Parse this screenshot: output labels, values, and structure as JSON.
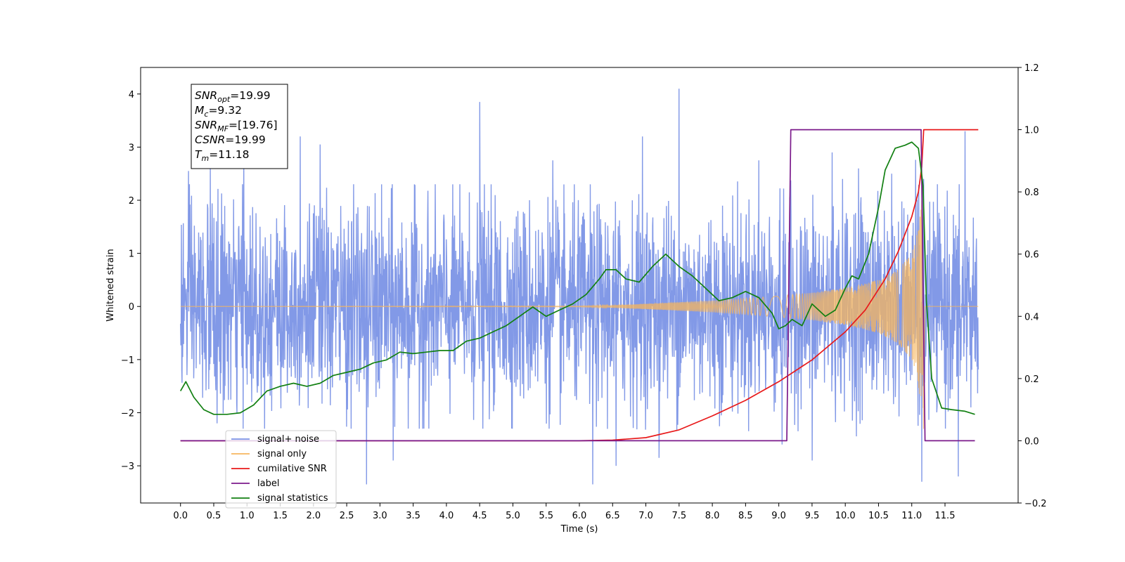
{
  "chart_data": {
    "type": "line",
    "title": "",
    "xlabel": "Time (s)",
    "ylabel": "Whitened strain",
    "y2label": "",
    "xlim": [
      -0.6,
      12.6
    ],
    "ylim": [
      -3.7,
      4.5
    ],
    "y2lim": [
      -0.2,
      1.2
    ],
    "xticks": [
      0.0,
      0.5,
      1.0,
      1.5,
      2.0,
      2.5,
      3.0,
      3.5,
      4.0,
      4.5,
      5.0,
      5.5,
      6.0,
      6.5,
      7.0,
      7.5,
      8.0,
      8.5,
      9.0,
      9.5,
      10.0,
      10.5,
      11.0,
      11.5
    ],
    "xtick_labels": [
      "0.0",
      "0.5",
      "1.0",
      "1.5",
      "2.0",
      "2.5",
      "3.0",
      "3.5",
      "4.0",
      "4.5",
      "5.0",
      "5.5",
      "6.0",
      "6.5",
      "7.0",
      "7.5",
      "8.0",
      "8.5",
      "9.0",
      "9.5",
      "10.0",
      "10.5",
      "11.0",
      "11.5"
    ],
    "yticks": [
      -3,
      -2,
      -1,
      0,
      1,
      2,
      3,
      4
    ],
    "ytick_labels": [
      "−3",
      "−2",
      "−1",
      "0",
      "1",
      "2",
      "3",
      "4"
    ],
    "y2ticks": [
      -0.2,
      0.0,
      0.2,
      0.4,
      0.6,
      0.8,
      1.0,
      1.2
    ],
    "y2tick_labels": [
      "−0.2",
      "0.0",
      "0.2",
      "0.4",
      "0.6",
      "0.8",
      "1.0",
      "1.2"
    ],
    "grid": false,
    "legend_position": "lower-left",
    "annotation": {
      "lines": [
        {
          "base": "SNR",
          "sub": "opt",
          "rest": "=19.99"
        },
        {
          "base": "M",
          "sub": "c",
          "rest": "=9.32"
        },
        {
          "base": "SNR",
          "sub": "MF",
          "rest": "=[19.76]"
        },
        {
          "base": "CSNR",
          "sub": "",
          "rest": "=19.99"
        },
        {
          "base": "T",
          "sub": "m",
          "rest": "=11.18"
        }
      ]
    },
    "noise_series": {
      "name": "signal+ noise",
      "color": "#7b93e6",
      "axis": "left",
      "t_start": 0.0,
      "t_end": 12.0,
      "typical_range": [
        -1.9,
        1.9
      ],
      "peaks": [
        {
          "t": 0.12,
          "v": 2.55
        },
        {
          "t": 0.45,
          "v": 2.6
        },
        {
          "t": 0.55,
          "v": -2.2
        },
        {
          "t": 0.95,
          "v": 2.85
        },
        {
          "t": 1.8,
          "v": 3.2
        },
        {
          "t": 2.1,
          "v": 3.05
        },
        {
          "t": 2.8,
          "v": -3.35
        },
        {
          "t": 3.2,
          "v": -2.9
        },
        {
          "t": 4.5,
          "v": 3.85
        },
        {
          "t": 5.6,
          "v": 2.75
        },
        {
          "t": 6.2,
          "v": -3.35
        },
        {
          "t": 6.55,
          "v": -3.0
        },
        {
          "t": 6.95,
          "v": 3.2
        },
        {
          "t": 7.2,
          "v": 3.05
        },
        {
          "t": 7.5,
          "v": 4.1
        },
        {
          "t": 7.2,
          "v": -2.85
        },
        {
          "t": 8.7,
          "v": 2.75
        },
        {
          "t": 9.05,
          "v": -2.6
        },
        {
          "t": 9.5,
          "v": -2.9
        },
        {
          "t": 9.8,
          "v": 2.9
        },
        {
          "t": 10.2,
          "v": 2.6
        },
        {
          "t": 10.7,
          "v": 2.5
        },
        {
          "t": 11.15,
          "v": 3.45
        },
        {
          "t": 11.15,
          "v": -3.3
        },
        {
          "t": 11.7,
          "v": -3.2
        },
        {
          "t": 11.8,
          "v": 3.3
        }
      ]
    },
    "signal_series": {
      "name": "signal only",
      "color": "#f6b65e",
      "axis": "left",
      "t_start": 0.0,
      "t_end": 12.0,
      "merger_time": 11.18,
      "envelope": [
        [
          0.0,
          0.0
        ],
        [
          6.0,
          0.005
        ],
        [
          6.5,
          0.02
        ],
        [
          7.0,
          0.05
        ],
        [
          7.5,
          0.08
        ],
        [
          8.0,
          0.11
        ],
        [
          8.5,
          0.15
        ],
        [
          9.0,
          0.2
        ],
        [
          9.5,
          0.26
        ],
        [
          10.0,
          0.35
        ],
        [
          10.5,
          0.5
        ],
        [
          10.8,
          0.7
        ],
        [
          11.0,
          1.0
        ],
        [
          11.1,
          1.5
        ],
        [
          11.18,
          2.5
        ],
        [
          11.2,
          0.0
        ],
        [
          12.0,
          0.0
        ]
      ]
    },
    "series": [
      {
        "name": "cumilative SNR",
        "color": "#e8191a",
        "axis": "right",
        "points": [
          [
            0.0,
            0.0
          ],
          [
            6.0,
            0.0
          ],
          [
            6.5,
            0.002
          ],
          [
            7.0,
            0.01
          ],
          [
            7.5,
            0.035
          ],
          [
            8.0,
            0.08
          ],
          [
            8.5,
            0.13
          ],
          [
            9.0,
            0.19
          ],
          [
            9.5,
            0.26
          ],
          [
            10.0,
            0.35
          ],
          [
            10.3,
            0.42
          ],
          [
            10.6,
            0.52
          ],
          [
            10.8,
            0.61
          ],
          [
            11.0,
            0.72
          ],
          [
            11.1,
            0.8
          ],
          [
            11.15,
            0.88
          ],
          [
            11.18,
            1.0
          ],
          [
            12.0,
            1.0
          ]
        ]
      },
      {
        "name": "label",
        "color": "#7b1a8b",
        "axis": "right",
        "points": [
          [
            0.0,
            0.0
          ],
          [
            9.12,
            0.0
          ],
          [
            9.18,
            1.0
          ],
          [
            11.14,
            1.0
          ],
          [
            11.2,
            0.0
          ],
          [
            11.95,
            0.0
          ]
        ]
      },
      {
        "name": "signal statistics",
        "color": "#128012",
        "axis": "right",
        "points": [
          [
            0.0,
            0.16
          ],
          [
            0.08,
            0.19
          ],
          [
            0.2,
            0.14
          ],
          [
            0.35,
            0.1
          ],
          [
            0.5,
            0.085
          ],
          [
            0.7,
            0.085
          ],
          [
            0.9,
            0.09
          ],
          [
            1.1,
            0.115
          ],
          [
            1.3,
            0.16
          ],
          [
            1.5,
            0.175
          ],
          [
            1.7,
            0.185
          ],
          [
            1.9,
            0.175
          ],
          [
            2.1,
            0.185
          ],
          [
            2.3,
            0.21
          ],
          [
            2.5,
            0.22
          ],
          [
            2.7,
            0.23
          ],
          [
            2.9,
            0.25
          ],
          [
            3.1,
            0.26
          ],
          [
            3.3,
            0.285
          ],
          [
            3.5,
            0.28
          ],
          [
            3.7,
            0.285
          ],
          [
            3.9,
            0.29
          ],
          [
            4.1,
            0.29
          ],
          [
            4.3,
            0.32
          ],
          [
            4.5,
            0.33
          ],
          [
            4.7,
            0.35
          ],
          [
            4.9,
            0.37
          ],
          [
            5.1,
            0.4
          ],
          [
            5.3,
            0.43
          ],
          [
            5.5,
            0.4
          ],
          [
            5.7,
            0.42
          ],
          [
            5.9,
            0.44
          ],
          [
            6.1,
            0.47
          ],
          [
            6.3,
            0.52
          ],
          [
            6.4,
            0.55
          ],
          [
            6.55,
            0.55
          ],
          [
            6.7,
            0.52
          ],
          [
            6.9,
            0.51
          ],
          [
            7.1,
            0.56
          ],
          [
            7.3,
            0.6
          ],
          [
            7.5,
            0.56
          ],
          [
            7.7,
            0.53
          ],
          [
            7.9,
            0.49
          ],
          [
            8.1,
            0.45
          ],
          [
            8.3,
            0.46
          ],
          [
            8.5,
            0.48
          ],
          [
            8.7,
            0.46
          ],
          [
            8.9,
            0.41
          ],
          [
            9.0,
            0.36
          ],
          [
            9.1,
            0.37
          ],
          [
            9.2,
            0.39
          ],
          [
            9.35,
            0.37
          ],
          [
            9.5,
            0.44
          ],
          [
            9.7,
            0.4
          ],
          [
            9.85,
            0.42
          ],
          [
            10.0,
            0.49
          ],
          [
            10.1,
            0.53
          ],
          [
            10.2,
            0.52
          ],
          [
            10.35,
            0.6
          ],
          [
            10.5,
            0.75
          ],
          [
            10.6,
            0.87
          ],
          [
            10.75,
            0.94
          ],
          [
            10.9,
            0.95
          ],
          [
            11.0,
            0.96
          ],
          [
            11.1,
            0.94
          ],
          [
            11.17,
            0.82
          ],
          [
            11.22,
            0.45
          ],
          [
            11.3,
            0.2
          ],
          [
            11.45,
            0.105
          ],
          [
            11.6,
            0.1
          ],
          [
            11.8,
            0.095
          ],
          [
            11.95,
            0.085
          ]
        ]
      }
    ],
    "legend": [
      {
        "label": "signal+ noise",
        "color": "#7b93e6"
      },
      {
        "label": "signal only",
        "color": "#f6b65e"
      },
      {
        "label": "cumilative SNR",
        "color": "#e8191a"
      },
      {
        "label": "label",
        "color": "#7b1a8b"
      },
      {
        "label": "signal statistics",
        "color": "#128012"
      }
    ]
  }
}
